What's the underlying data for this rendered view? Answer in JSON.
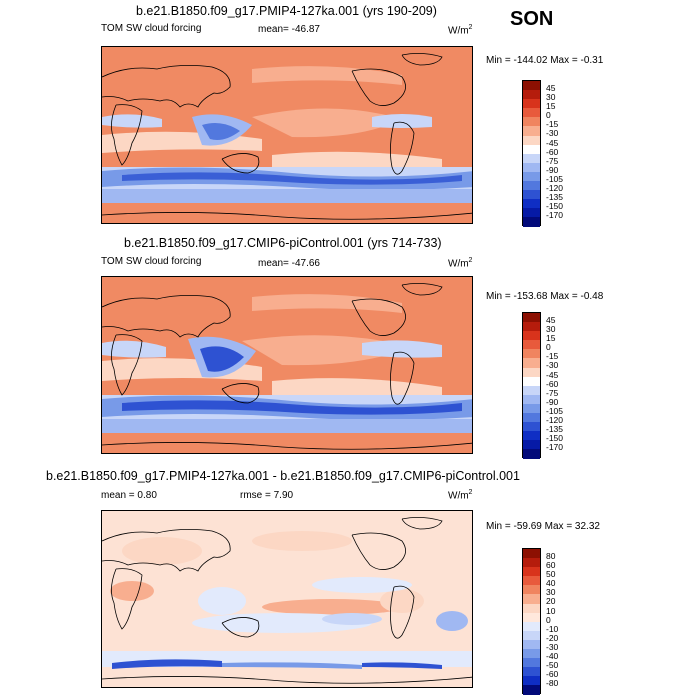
{
  "season": "SON",
  "panels": [
    {
      "title": "b.e21.B1850.f09_g17.PMIP4-127ka.001 (yrs 190-209)",
      "left_label": "TOM SW cloud forcing",
      "mean_text": "mean= -46.87",
      "rmse_text": "",
      "units": "W/m",
      "units_exp": "2",
      "minmax": "Min = -144.02 Max =  -0.31",
      "colorbar": {
        "labels": [
          "45",
          "30",
          "15",
          "0",
          "-15",
          "-30",
          "-45",
          "-60",
          "-75",
          "-90",
          "-105",
          "-120",
          "-135",
          "-150",
          "-170"
        ],
        "colors": [
          "#8c1002",
          "#b51c0c",
          "#d8331c",
          "#e85a3c",
          "#f0845f",
          "#f8ae8f",
          "#fcd7c4",
          "#ffffff",
          "#c8d6f8",
          "#a0b8f2",
          "#789ae8",
          "#5278de",
          "#2e52d2",
          "#0f2ec4",
          "#061aa6",
          "#020a7a"
        ]
      },
      "stats": {
        "mean": -46.87,
        "min": -144.02,
        "max": -0.31
      }
    },
    {
      "title": "b.e21.B1850.f09_g17.CMIP6-piControl.001 (yrs 714-733)",
      "left_label": "TOM SW cloud forcing",
      "mean_text": "mean= -47.66",
      "rmse_text": "",
      "units": "W/m",
      "units_exp": "2",
      "minmax": "Min = -153.68 Max =  -0.48",
      "colorbar": {
        "labels": [
          "45",
          "30",
          "15",
          "0",
          "-15",
          "-30",
          "-45",
          "-60",
          "-75",
          "-90",
          "-105",
          "-120",
          "-135",
          "-150",
          "-170"
        ],
        "colors": [
          "#8c1002",
          "#b51c0c",
          "#d8331c",
          "#e85a3c",
          "#f0845f",
          "#f8ae8f",
          "#fcd7c4",
          "#ffffff",
          "#c8d6f8",
          "#a0b8f2",
          "#789ae8",
          "#5278de",
          "#2e52d2",
          "#0f2ec4",
          "#061aa6",
          "#020a7a"
        ]
      },
      "stats": {
        "mean": -47.66,
        "min": -153.68,
        "max": -0.48
      }
    },
    {
      "title": "b.e21.B1850.f09_g17.PMIP4-127ka.001 - b.e21.B1850.f09_g17.CMIP6-piControl.001",
      "left_label": "mean =   0.80",
      "mean_text": "",
      "rmse_text": "rmse =   7.90",
      "units": "W/m",
      "units_exp": "2",
      "minmax": "Min = -59.69 Max =  32.32",
      "colorbar": {
        "labels": [
          "80",
          "60",
          "50",
          "40",
          "30",
          "20",
          "10",
          "0",
          "-10",
          "-20",
          "-30",
          "-40",
          "-50",
          "-60",
          "-80"
        ],
        "colors": [
          "#8c1002",
          "#b51c0c",
          "#d8331c",
          "#e85a3c",
          "#f0845f",
          "#f8ae8f",
          "#fcd7c4",
          "#ffe8dc",
          "#e2eafc",
          "#c8d6f8",
          "#a0b8f2",
          "#789ae8",
          "#5278de",
          "#2e52d2",
          "#0f2ec4",
          "#020a7a"
        ]
      },
      "stats": {
        "mean": 0.8,
        "rmse": 7.9,
        "min": -59.69,
        "max": 32.32
      }
    }
  ],
  "colors": {
    "warm_bg": "#f08a63",
    "light_bg": "#fde2d4",
    "ocean_pale": "#c6d8f5",
    "storm_blue": "#3a5fd6"
  }
}
